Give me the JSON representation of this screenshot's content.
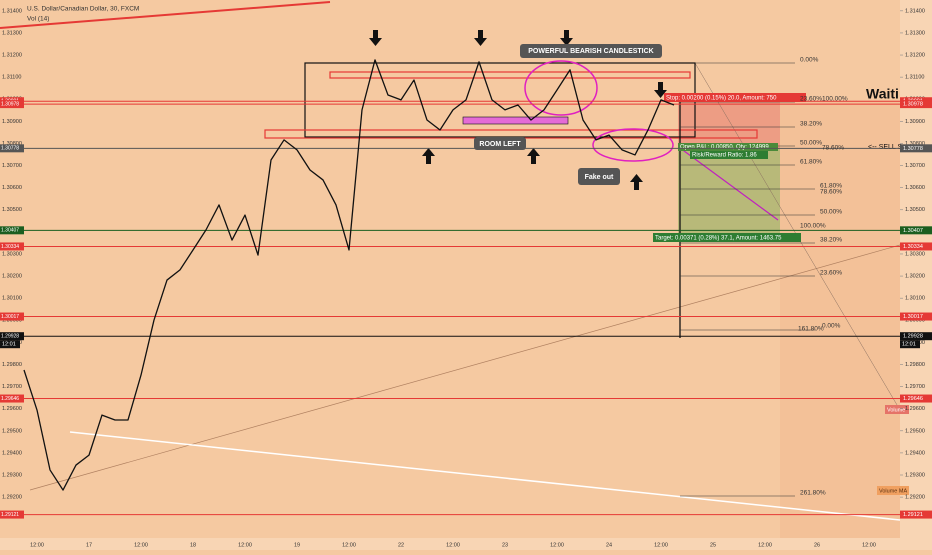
{
  "chart_data": {
    "type": "line",
    "title": "U.S. Dollar/Canadian Dollar, 30, FXCM",
    "subtitle": "Vol (14)",
    "categories": [
      null,
      "12:00",
      null,
      null,
      null,
      "17",
      null,
      null,
      null,
      "12:00",
      null,
      null,
      null,
      "18",
      null,
      null,
      null,
      "12:00",
      null,
      null,
      null,
      "19",
      null,
      null,
      null,
      "12:00",
      null,
      null,
      null,
      "22",
      null,
      null,
      null,
      "12:00",
      null,
      null,
      null,
      "23",
      null,
      null,
      null,
      "12:00",
      null,
      null,
      null,
      "24",
      null,
      null,
      null,
      "12:00",
      null,
      null,
      null,
      "25",
      null,
      null,
      null,
      "12:00",
      null,
      null,
      null,
      "26",
      null,
      null,
      null,
      "12:00",
      null
    ],
    "values": [
      1.29775,
      1.29594,
      1.29323,
      1.29232,
      1.29345,
      1.2939,
      1.29571,
      1.29549,
      1.29549,
      1.29752,
      1.30001,
      1.30182,
      1.30228,
      1.30318,
      1.30409,
      1.30522,
      1.30363,
      1.30476,
      1.30295,
      1.30725,
      1.30816,
      1.30771,
      1.3068,
      1.30635,
      1.30522,
      1.30318,
      1.30952,
      1.31178,
      1.31019,
      1.30997,
      1.31087,
      1.30906,
      1.30861,
      1.30952,
      1.30997,
      1.31169,
      1.30997,
      1.30952,
      1.30974,
      1.30906,
      1.30952,
      1.31042,
      1.31133,
      1.30906,
      1.30816,
      1.30838,
      1.30771,
      1.30748,
      1.30861,
      1.30997,
      1.30974,
      null,
      null,
      null,
      null,
      null,
      null,
      null,
      null,
      null,
      null,
      null,
      null,
      null,
      null,
      null,
      null
    ],
    "color": "#111111",
    "ylim": [
      1.29015,
      1.31449
    ],
    "yticks": [
      {
        "value": 1.292,
        "label": "1.29200"
      },
      {
        "value": 1.293,
        "label": "1.29300"
      },
      {
        "value": 1.294,
        "label": "1.29400"
      },
      {
        "value": 1.295,
        "label": "1.29500"
      },
      {
        "value": 1.296,
        "label": "1.29600"
      },
      {
        "value": 1.297,
        "label": "1.29700"
      },
      {
        "value": 1.298,
        "label": "1.29800"
      },
      {
        "value": 1.299,
        "label": "1.29900"
      },
      {
        "value": 1.3,
        "label": "1.30000"
      },
      {
        "value": 1.301,
        "label": "1.30100"
      },
      {
        "value": 1.302,
        "label": "1.30200"
      },
      {
        "value": 1.303,
        "label": "1.30300"
      },
      {
        "value": 1.304,
        "label": "1.30400"
      },
      {
        "value": 1.305,
        "label": "1.30500"
      },
      {
        "value": 1.306,
        "label": "1.30600"
      },
      {
        "value": 1.307,
        "label": "1.30700"
      },
      {
        "value": 1.308,
        "label": "1.30800"
      },
      {
        "value": 1.309,
        "label": "1.30900"
      },
      {
        "value": 1.31,
        "label": "1.31000"
      },
      {
        "value": 1.311,
        "label": "1.31100"
      },
      {
        "value": 1.312,
        "label": "1.31200"
      },
      {
        "value": 1.313,
        "label": "1.31300"
      },
      {
        "value": 1.314,
        "label": "1.31400"
      }
    ],
    "grid": false,
    "levels": [
      {
        "value": 1.30991,
        "label": "1.30991",
        "color": "#e53935"
      },
      {
        "value": 1.30978,
        "label": "1.30978",
        "color": "#e53935"
      },
      {
        "value": 1.30778,
        "label": "1.30778",
        "color": "#555555"
      },
      {
        "value": 1.30407,
        "label": "1.30407",
        "color": "#1b5e20"
      },
      {
        "value": 1.30334,
        "label": "1.30334",
        "color": "#e53935"
      },
      {
        "value": 1.30017,
        "label": "1.30017",
        "color": "#e53935"
      },
      {
        "value": 1.29928,
        "label": "1.29928",
        "color": "#111111"
      },
      {
        "value": 1.29646,
        "label": "1.29646",
        "color": "#e53935"
      },
      {
        "value": 1.29121,
        "label": "1.29121",
        "color": "#e53935"
      }
    ],
    "last_time": "12:01",
    "annotations": {
      "candle": "POWERFUL BEARISH CANDLESTICK",
      "room": "ROOM LEFT",
      "fake": "Fake out",
      "waiting": "Waiti",
      "sell": "<-- SELL S",
      "stop": "Stop: 0.00200 (0.15%) 20.0, Amount: 750",
      "pnl": "Open P&L: 0.00850, Qty: 124999",
      "rr": "Risk/Reward Ratio: 1.86",
      "target": "Target: 0.00371 (0.28%) 37.1, Amount: 1463.75",
      "volume": "Volume",
      "volume_ma": "Volume MA"
    },
    "fib_labels": [
      "0.00%",
      "23.60%",
      "100.00%",
      "38.20%",
      "50.00%",
      "78.60%",
      "61.80%",
      "61.80%",
      "78.60%",
      "50.00%",
      "100.00%",
      "38.20%",
      "23.60%",
      "161.80%",
      "0.00%",
      "261.80%"
    ]
  }
}
